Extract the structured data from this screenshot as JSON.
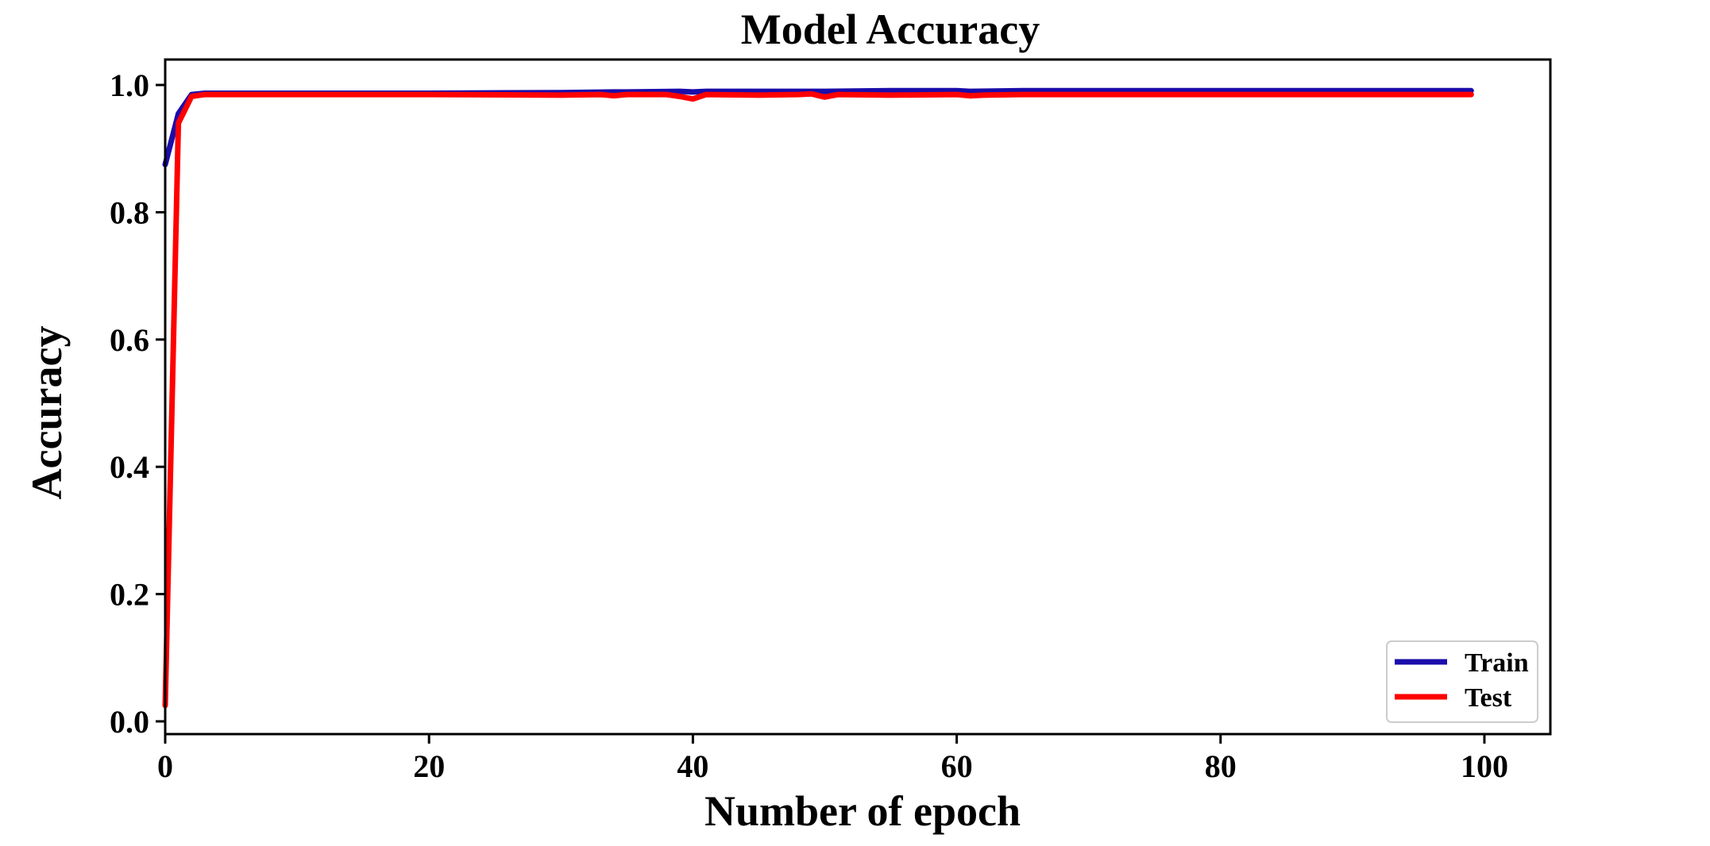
{
  "chart_data": {
    "type": "line",
    "title": "Model Accuracy",
    "xlabel": "Number of epoch",
    "ylabel": "Accuracy",
    "xlim": [
      0,
      105
    ],
    "ylim": [
      -0.02,
      1.04
    ],
    "xticks": [
      0,
      20,
      40,
      60,
      80,
      100
    ],
    "yticks": [
      0.0,
      0.2,
      0.4,
      0.6,
      0.8,
      1.0
    ],
    "xtick_labels": [
      "0",
      "20",
      "40",
      "60",
      "80",
      "100"
    ],
    "ytick_labels": [
      "0.0",
      "0.2",
      "0.4",
      "0.6",
      "0.8",
      "1.0"
    ],
    "grid": false,
    "legend_position": "bottom-right",
    "series": [
      {
        "name": "Train",
        "color": "#1a0dab",
        "x": [
          0,
          1,
          2,
          3,
          5,
          10,
          20,
          30,
          34,
          35,
          39,
          40,
          41,
          45,
          50,
          55,
          60,
          61,
          65,
          70,
          80,
          90,
          99
        ],
        "y": [
          0.875,
          0.955,
          0.985,
          0.987,
          0.987,
          0.987,
          0.987,
          0.988,
          0.989,
          0.989,
          0.99,
          0.989,
          0.99,
          0.99,
          0.99,
          0.991,
          0.991,
          0.99,
          0.991,
          0.991,
          0.991,
          0.991,
          0.991
        ]
      },
      {
        "name": "Test",
        "color": "#ff0000",
        "x": [
          0,
          1,
          2,
          3,
          5,
          10,
          20,
          30,
          33,
          34,
          35,
          38,
          39,
          40,
          41,
          45,
          48,
          49,
          50,
          51,
          55,
          60,
          61,
          62,
          65,
          70,
          80,
          90,
          99
        ],
        "y": [
          0.025,
          0.94,
          0.982,
          0.985,
          0.985,
          0.985,
          0.985,
          0.984,
          0.985,
          0.983,
          0.985,
          0.985,
          0.982,
          0.978,
          0.985,
          0.984,
          0.985,
          0.986,
          0.981,
          0.985,
          0.984,
          0.985,
          0.983,
          0.984,
          0.985,
          0.985,
          0.985,
          0.985,
          0.985
        ]
      }
    ]
  }
}
